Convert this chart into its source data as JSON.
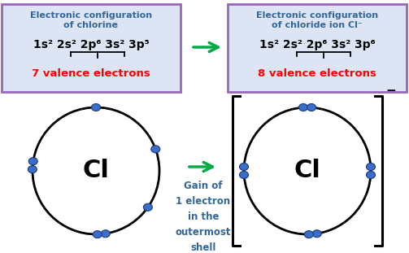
{
  "bg_color": "#ffffff",
  "box1_bg": "#dde5f5",
  "box2_bg": "#dde5f5",
  "box_edge_color": "#9966bb",
  "title_color": "#336699",
  "config_color": "#111111",
  "valence_color": "#ff0000",
  "arrow_color": "#00aa44",
  "electron_color": "#3a6ec8",
  "electron_edge": "#1a3a7a",
  "atom_label": "Cl",
  "box1_line1": "Electronic configuration",
  "box1_line2": "of chlorine",
  "box1_config": "1s² 2s² 2p⁶ 3s² 3p⁵",
  "box1_valence": "7 valence electrons",
  "box2_line1": "Electronic configuration",
  "box2_line2": "of chloride ion Cl⁻",
  "box2_config": "1s² 2s² 2p⁶ 3s² 3p⁶",
  "box2_valence": "8 valence electrons",
  "gain_text": "Gain of\n1 electron\nin the\noutermost\nshell",
  "cl1_electron_groups": [
    [
      85,
      true
    ],
    [
      35,
      false
    ],
    [
      340,
      false
    ],
    [
      270,
      false
    ],
    [
      185,
      true
    ]
  ],
  "cl2_electron_groups": [
    [
      85,
      true
    ],
    [
      0,
      true
    ],
    [
      270,
      true
    ],
    [
      180,
      true
    ]
  ]
}
